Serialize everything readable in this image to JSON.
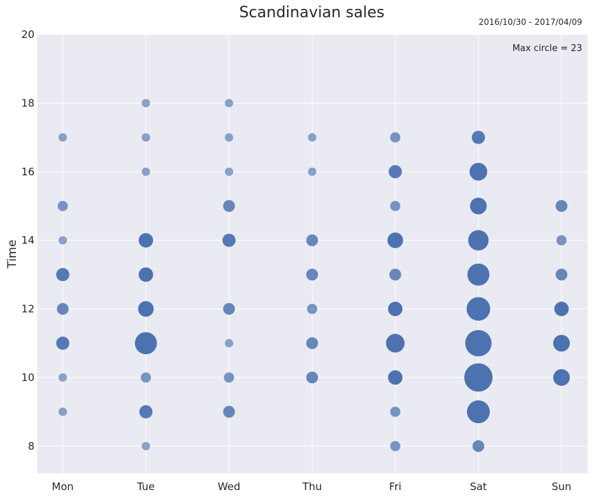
{
  "chart_data": {
    "type": "scatter",
    "title": "Scandinavian sales",
    "subtitle": "2016/10/30 - 2017/04/09",
    "annotation": "Max circle = 23",
    "xlabel": "",
    "ylabel": "Time",
    "categories": [
      "Mon",
      "Tue",
      "Wed",
      "Thu",
      "Fri",
      "Sat",
      "Sun"
    ],
    "yticks": [
      8,
      10,
      12,
      14,
      16,
      18,
      20
    ],
    "ylim": [
      7.2,
      20
    ],
    "grid": true,
    "max_size": 23,
    "color": "#4c72b0",
    "background": "#eaeaf2",
    "points": [
      {
        "day": "Mon",
        "hour": 9,
        "size": 2
      },
      {
        "day": "Mon",
        "hour": 10,
        "size": 2
      },
      {
        "day": "Mon",
        "hour": 11,
        "size": 5
      },
      {
        "day": "Mon",
        "hour": 12,
        "size": 4
      },
      {
        "day": "Mon",
        "hour": 13,
        "size": 5
      },
      {
        "day": "Mon",
        "hour": 14,
        "size": 2
      },
      {
        "day": "Mon",
        "hour": 15,
        "size": 3
      },
      {
        "day": "Mon",
        "hour": 17,
        "size": 2
      },
      {
        "day": "Tue",
        "hour": 8,
        "size": 2
      },
      {
        "day": "Tue",
        "hour": 9,
        "size": 5
      },
      {
        "day": "Tue",
        "hour": 10,
        "size": 3
      },
      {
        "day": "Tue",
        "hour": 11,
        "size": 14
      },
      {
        "day": "Tue",
        "hour": 12,
        "size": 7
      },
      {
        "day": "Tue",
        "hour": 13,
        "size": 6
      },
      {
        "day": "Tue",
        "hour": 14,
        "size": 6
      },
      {
        "day": "Tue",
        "hour": 16,
        "size": 2
      },
      {
        "day": "Tue",
        "hour": 17,
        "size": 2
      },
      {
        "day": "Tue",
        "hour": 18,
        "size": 2
      },
      {
        "day": "Wed",
        "hour": 9,
        "size": 4
      },
      {
        "day": "Wed",
        "hour": 10,
        "size": 3
      },
      {
        "day": "Wed",
        "hour": 11,
        "size": 2
      },
      {
        "day": "Wed",
        "hour": 12,
        "size": 4
      },
      {
        "day": "Wed",
        "hour": 14,
        "size": 5
      },
      {
        "day": "Wed",
        "hour": 15,
        "size": 4
      },
      {
        "day": "Wed",
        "hour": 16,
        "size": 2
      },
      {
        "day": "Wed",
        "hour": 17,
        "size": 2
      },
      {
        "day": "Wed",
        "hour": 18,
        "size": 2
      },
      {
        "day": "Thu",
        "hour": 10,
        "size": 4
      },
      {
        "day": "Thu",
        "hour": 11,
        "size": 4
      },
      {
        "day": "Thu",
        "hour": 12,
        "size": 3
      },
      {
        "day": "Thu",
        "hour": 13,
        "size": 4
      },
      {
        "day": "Thu",
        "hour": 14,
        "size": 4
      },
      {
        "day": "Thu",
        "hour": 16,
        "size": 2
      },
      {
        "day": "Thu",
        "hour": 17,
        "size": 2
      },
      {
        "day": "Fri",
        "hour": 8,
        "size": 3
      },
      {
        "day": "Fri",
        "hour": 9,
        "size": 3
      },
      {
        "day": "Fri",
        "hour": 10,
        "size": 6
      },
      {
        "day": "Fri",
        "hour": 11,
        "size": 10
      },
      {
        "day": "Fri",
        "hour": 12,
        "size": 6
      },
      {
        "day": "Fri",
        "hour": 13,
        "size": 4
      },
      {
        "day": "Fri",
        "hour": 14,
        "size": 7
      },
      {
        "day": "Fri",
        "hour": 15,
        "size": 3
      },
      {
        "day": "Fri",
        "hour": 16,
        "size": 5
      },
      {
        "day": "Fri",
        "hour": 17,
        "size": 3
      },
      {
        "day": "Sat",
        "hour": 8,
        "size": 4
      },
      {
        "day": "Sat",
        "hour": 9,
        "size": 15
      },
      {
        "day": "Sat",
        "hour": 10,
        "size": 23
      },
      {
        "day": "Sat",
        "hour": 11,
        "size": 20
      },
      {
        "day": "Sat",
        "hour": 12,
        "size": 16
      },
      {
        "day": "Sat",
        "hour": 13,
        "size": 14
      },
      {
        "day": "Sat",
        "hour": 14,
        "size": 12
      },
      {
        "day": "Sat",
        "hour": 15,
        "size": 8
      },
      {
        "day": "Sat",
        "hour": 16,
        "size": 9
      },
      {
        "day": "Sat",
        "hour": 17,
        "size": 5
      },
      {
        "day": "Sun",
        "hour": 10,
        "size": 8
      },
      {
        "day": "Sun",
        "hour": 11,
        "size": 8
      },
      {
        "day": "Sun",
        "hour": 12,
        "size": 6
      },
      {
        "day": "Sun",
        "hour": 13,
        "size": 4
      },
      {
        "day": "Sun",
        "hour": 14,
        "size": 3
      },
      {
        "day": "Sun",
        "hour": 15,
        "size": 4
      }
    ]
  }
}
